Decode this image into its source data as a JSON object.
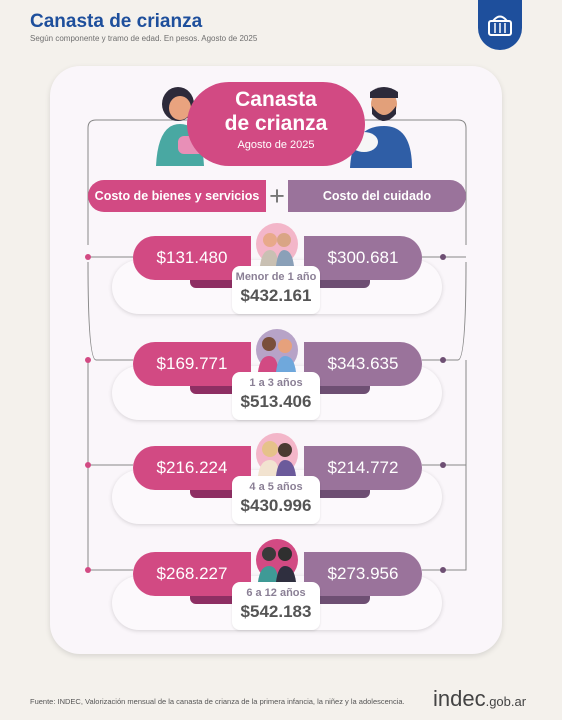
{
  "header": {
    "title": "Canasta de crianza",
    "subtitle": "Según componente y tramo de edad. En pesos. Agosto de 2025"
  },
  "center": {
    "line1": "Canasta",
    "line2": "de crianza",
    "date": "Agosto de 2025"
  },
  "columns": {
    "left": "Costo de bienes y servicios",
    "plus": "+",
    "right": "Costo del cuidado"
  },
  "rows": [
    {
      "age": "Menor de 1 año",
      "bienes": "$131.480",
      "cuidado": "$300.681",
      "total": "$432.161"
    },
    {
      "age": "1 a 3 años",
      "bienes": "$169.771",
      "cuidado": "$343.635",
      "total": "$513.406"
    },
    {
      "age": "4 a 5 años",
      "bienes": "$216.224",
      "cuidado": "$214.772",
      "total": "$430.996"
    },
    {
      "age": "6 a 12 años",
      "bienes": "$268.227",
      "cuidado": "$273.956",
      "total": "$542.183"
    }
  ],
  "footer": {
    "source": "Fuente: INDEC, Valorización mensual de la canasta de crianza de la primera infancia, la niñez y la adolescencia.",
    "logo_main": "indec",
    "logo_suffix": ".gob.ar"
  },
  "colors": {
    "title_blue": "#1e4f9c",
    "pink": "#d24a83",
    "purple": "#9a739b"
  },
  "icons": [
    "basket-icon",
    "mother-illustration",
    "father-illustration",
    "children-avatar"
  ]
}
